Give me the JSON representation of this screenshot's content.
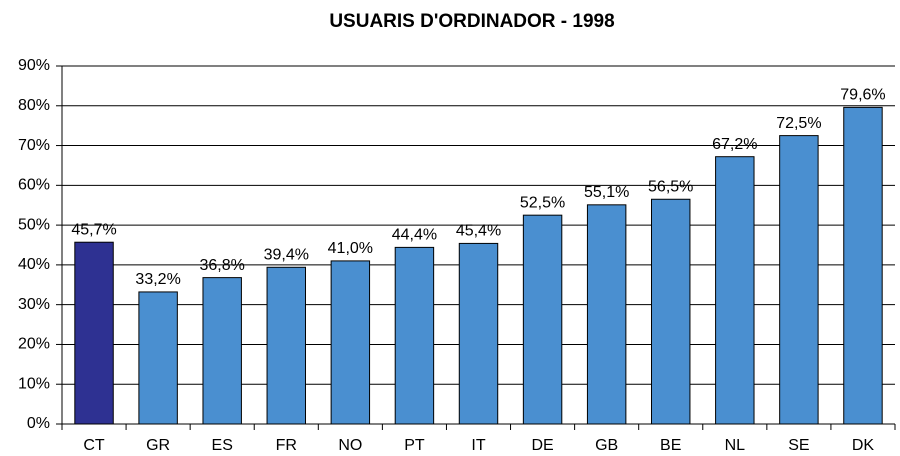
{
  "chart_data": {
    "type": "bar",
    "title": "USUARIS D'ORDINADOR - 1998",
    "categories": [
      "CT",
      "GR",
      "ES",
      "FR",
      "NO",
      "PT",
      "IT",
      "DE",
      "GB",
      "BE",
      "NL",
      "SE",
      "DK"
    ],
    "values": [
      45.7,
      33.2,
      36.8,
      39.4,
      41.0,
      44.4,
      45.4,
      52.5,
      55.1,
      56.5,
      67.2,
      72.5,
      79.6
    ],
    "value_labels": [
      "45,7%",
      "33,2%",
      "36,8%",
      "39,4%",
      "41,0%",
      "44,4%",
      "45,4%",
      "52,5%",
      "55,1%",
      "56,5%",
      "67,2%",
      "72,5%",
      "79,6%"
    ],
    "colors": [
      "#2e3192",
      "#4a8fd0",
      "#4a8fd0",
      "#4a8fd0",
      "#4a8fd0",
      "#4a8fd0",
      "#4a8fd0",
      "#4a8fd0",
      "#4a8fd0",
      "#4a8fd0",
      "#4a8fd0",
      "#4a8fd0",
      "#4a8fd0"
    ],
    "ylim": [
      0,
      90
    ],
    "yticks": [
      {
        "value": 0,
        "label": "0%"
      },
      {
        "value": 10,
        "label": "10%"
      },
      {
        "value": 20,
        "label": "20%"
      },
      {
        "value": 30,
        "label": "30%"
      },
      {
        "value": 40,
        "label": "40%"
      },
      {
        "value": 50,
        "label": "50%"
      },
      {
        "value": 60,
        "label": "60%"
      },
      {
        "value": 70,
        "label": "70%"
      },
      {
        "value": 80,
        "label": "80%"
      },
      {
        "value": 90,
        "label": "90%"
      }
    ],
    "grid": true
  }
}
